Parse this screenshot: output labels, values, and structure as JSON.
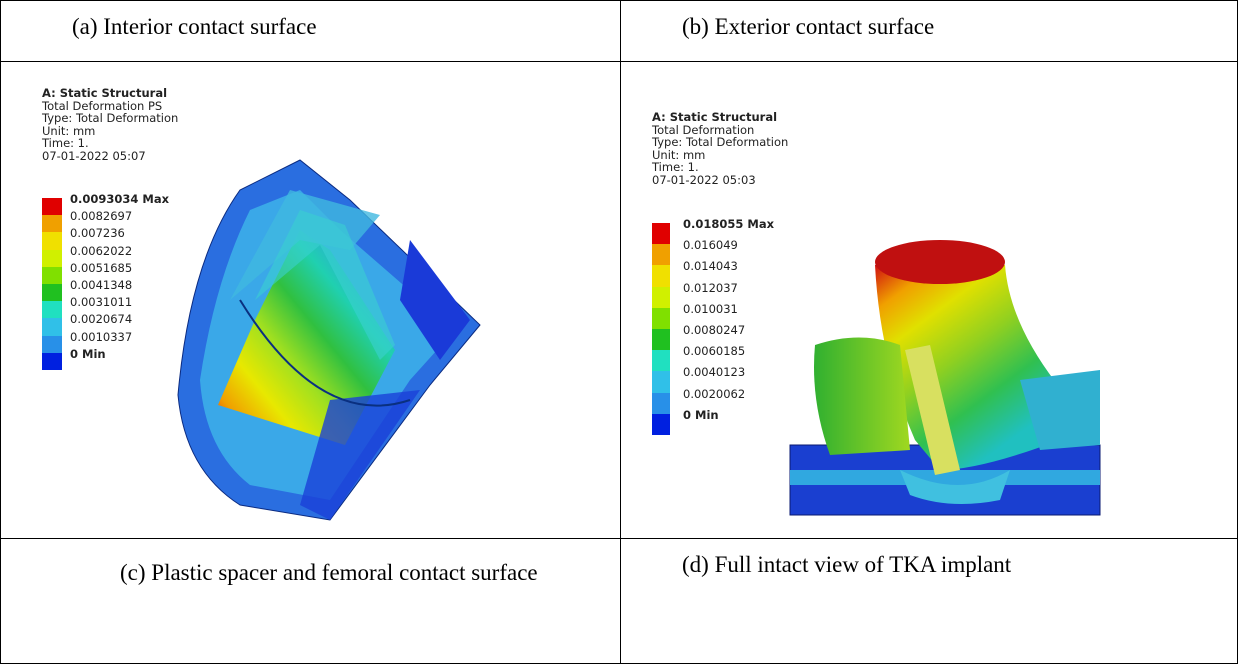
{
  "captions": {
    "a": "(a)  Interior contact surface",
    "b": "(b)  Exterior contact surface",
    "c": "(c) Plastic spacer and femoral contact surface",
    "d": "(d)  Full intact view of TKA implant"
  },
  "panels": [
    {
      "header": [
        "A: Static Structural",
        "Total Deformation PS",
        "Type: Total Deformation",
        "Unit: mm",
        "Time: 1.",
        "07-01-2022 05:07"
      ],
      "scale": [
        "0.0093034 Max",
        "0.0082697",
        "0.007236",
        "0.0062022",
        "0.0051685",
        "0.0041348",
        "0.0031011",
        "0.0020674",
        "0.0010337",
        "0 Min"
      ]
    },
    {
      "header": [
        "A: Static Structural",
        "Total Deformation",
        "Type: Total Deformation",
        "Unit: mm",
        "Time: 1.",
        "07-01-2022 05:03"
      ],
      "scale": [
        "0.018055 Max",
        "0.016049",
        "0.014043",
        "0.012037",
        "0.010031",
        "0.0080247",
        "0.0060185",
        "0.0040123",
        "0.0020062",
        "0 Min"
      ]
    }
  ]
}
